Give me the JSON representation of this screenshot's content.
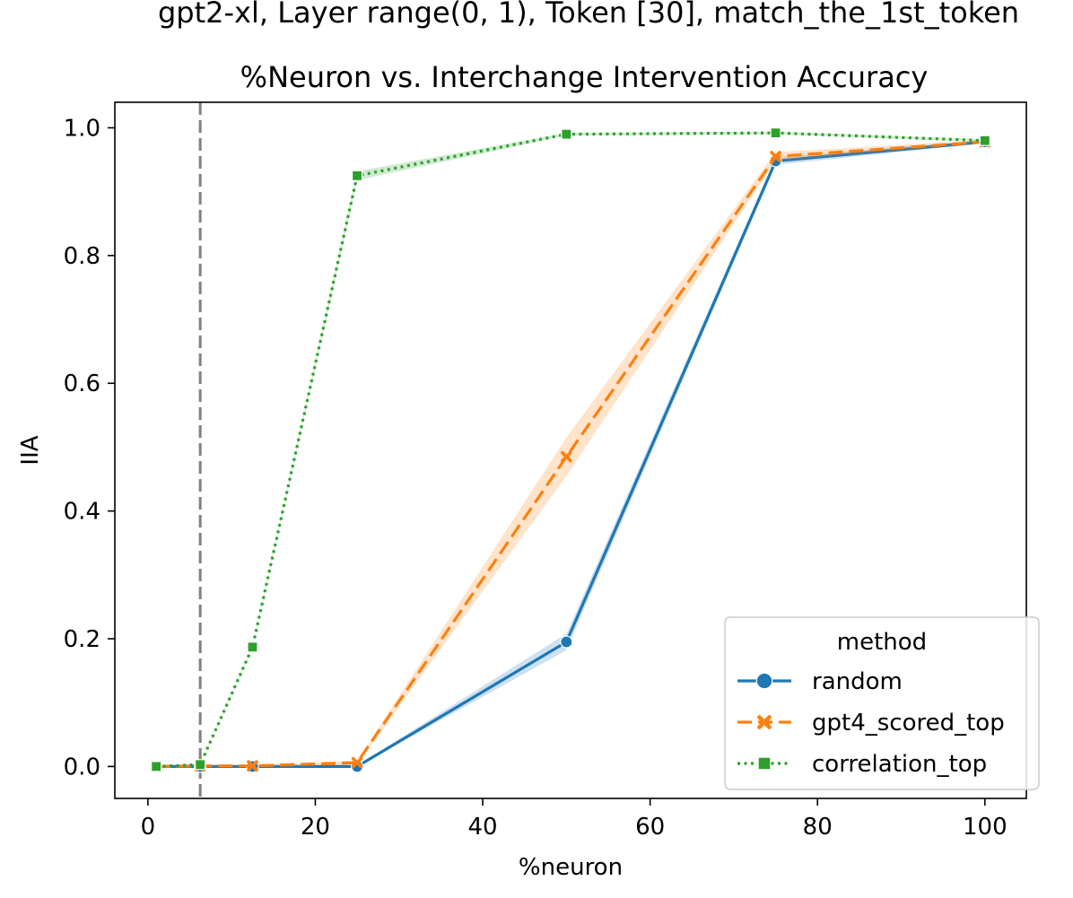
{
  "chart_data": {
    "type": "line",
    "suptitle": "gpt2-xl, Layer range(0, 1), Token [30], match_the_1st_token",
    "title": "%Neuron vs. Interchange Intervention Accuracy",
    "xlabel": "%neuron",
    "ylabel": "IIA",
    "xlim": [
      -3.95,
      104.95
    ],
    "ylim": [
      -0.05,
      1.04
    ],
    "xticks": [
      0,
      20,
      40,
      60,
      80,
      100
    ],
    "yticks": [
      0.0,
      0.2,
      0.4,
      0.6,
      0.8,
      1.0
    ],
    "xtick_labels": [
      "0",
      "20",
      "40",
      "60",
      "80",
      "100"
    ],
    "ytick_labels": [
      "0.0",
      "0.2",
      "0.4",
      "0.6",
      "0.8",
      "1.0"
    ],
    "vline": {
      "x": 6.25,
      "color": "#808080",
      "style": "dashed"
    },
    "grid": false,
    "legend": {
      "title": "method",
      "placement": "lower-right"
    },
    "series": [
      {
        "name": "random",
        "color": "#1f77b4",
        "linestyle": "solid",
        "marker": "circle",
        "x": [
          1,
          6.25,
          12.5,
          25,
          50,
          75,
          100
        ],
        "y": [
          0.0,
          0.0,
          0.0,
          0.0,
          0.195,
          0.948,
          0.978
        ],
        "ci_low": [
          0.0,
          0.0,
          0.0,
          0.0,
          0.182,
          0.942,
          0.976
        ],
        "ci_high": [
          0.0,
          0.0,
          0.0,
          0.002,
          0.208,
          0.954,
          0.981
        ]
      },
      {
        "name": "gpt4_scored_top",
        "color": "#ff7f0e",
        "linestyle": "dashed",
        "marker": "x",
        "x": [
          1,
          6.25,
          12.5,
          25,
          50,
          75,
          100
        ],
        "y": [
          0.0,
          0.001,
          0.001,
          0.006,
          0.485,
          0.955,
          0.978
        ],
        "ci_low": [
          0.0,
          0.0,
          0.0,
          0.003,
          0.455,
          0.948,
          0.976
        ],
        "ci_high": [
          0.0,
          0.002,
          0.003,
          0.009,
          0.515,
          0.962,
          0.981
        ]
      },
      {
        "name": "correlation_top",
        "color": "#2ca02c",
        "linestyle": "dotted",
        "marker": "square",
        "x": [
          1,
          6.25,
          12.5,
          25,
          50,
          75,
          100
        ],
        "y": [
          0.0,
          0.003,
          0.187,
          0.925,
          0.99,
          0.992,
          0.98
        ],
        "ci_low": [
          0.0,
          0.002,
          0.185,
          0.918,
          0.988,
          0.99,
          0.978
        ],
        "ci_high": [
          0.0,
          0.004,
          0.189,
          0.932,
          0.992,
          0.994,
          0.982
        ]
      }
    ]
  }
}
